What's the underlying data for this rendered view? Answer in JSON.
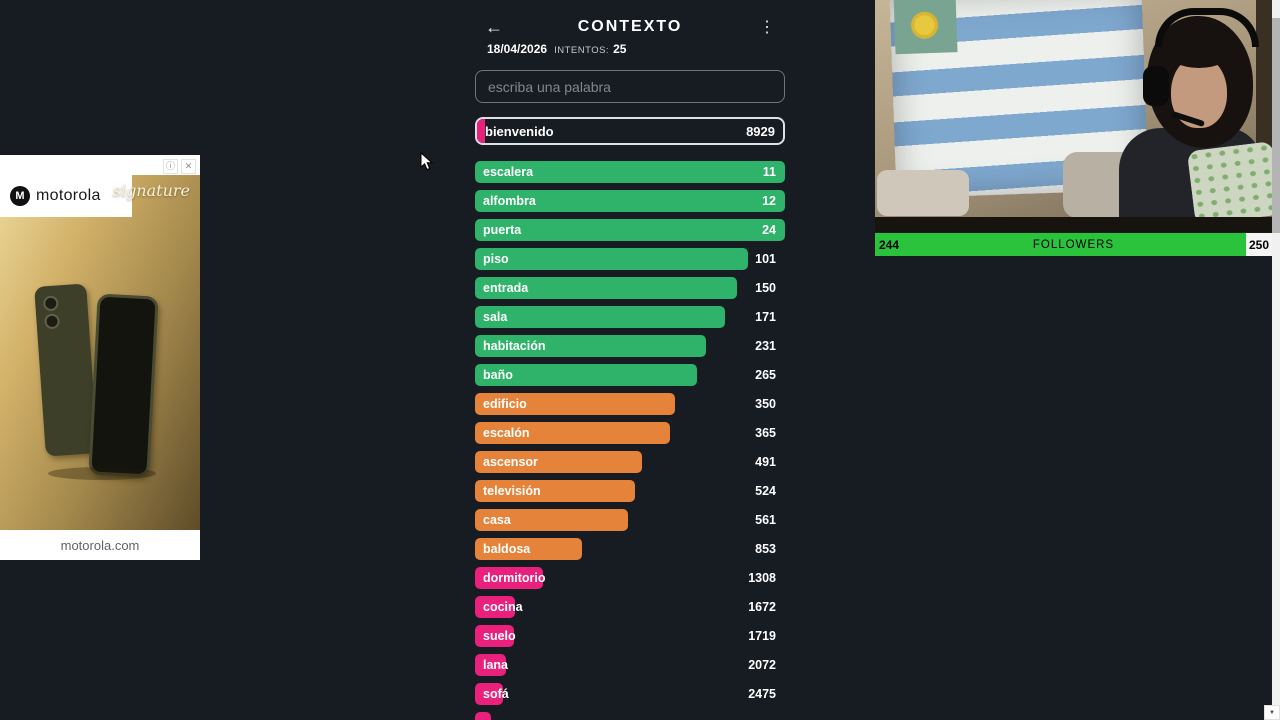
{
  "window": {
    "bg": "#171b22"
  },
  "game": {
    "back_icon": "←",
    "title": "CONTEXTO",
    "menu_icon": "⋮",
    "date": "18/04/2026",
    "attempts_label": "INTENTOS:",
    "attempts": "25",
    "input_placeholder": "escriba una palabra",
    "colors": {
      "green": "#2fb26a",
      "orange": "#e5833a",
      "pink": "#e9217c"
    },
    "current_guess": {
      "label": "bienvenido",
      "value": "8929",
      "pct": 2.5,
      "color": "pink"
    },
    "rows": [
      {
        "label": "escalera",
        "value": "11",
        "pct": 100,
        "color": "green"
      },
      {
        "label": "alfombra",
        "value": "12",
        "pct": 100,
        "color": "green"
      },
      {
        "label": "puerta",
        "value": "24",
        "pct": 100,
        "color": "green"
      },
      {
        "label": "piso",
        "value": "101",
        "pct": 88,
        "color": "green"
      },
      {
        "label": "entrada",
        "value": "150",
        "pct": 84.5,
        "color": "green"
      },
      {
        "label": "sala",
        "value": "171",
        "pct": 80.5,
        "color": "green"
      },
      {
        "label": "habitación",
        "value": "231",
        "pct": 74.5,
        "color": "green"
      },
      {
        "label": "baño",
        "value": "265",
        "pct": 71.5,
        "color": "green"
      },
      {
        "label": "edificio",
        "value": "350",
        "pct": 64.5,
        "color": "orange"
      },
      {
        "label": "escalón",
        "value": "365",
        "pct": 63,
        "color": "orange"
      },
      {
        "label": "ascensor",
        "value": "491",
        "pct": 54,
        "color": "orange"
      },
      {
        "label": "televisión",
        "value": "524",
        "pct": 51.5,
        "color": "orange"
      },
      {
        "label": "casa",
        "value": "561",
        "pct": 49.5,
        "color": "orange"
      },
      {
        "label": "baldosa",
        "value": "853",
        "pct": 34.5,
        "color": "orange"
      },
      {
        "label": "dormitorio",
        "value": "1308",
        "pct": 22,
        "color": "pink"
      },
      {
        "label": "cocina",
        "value": "1672",
        "pct": 13,
        "color": "pink"
      },
      {
        "label": "suelo",
        "value": "1719",
        "pct": 12.5,
        "color": "pink"
      },
      {
        "label": "lana",
        "value": "2072",
        "pct": 10,
        "color": "pink"
      },
      {
        "label": "sofá",
        "value": "2475",
        "pct": 9,
        "color": "pink"
      }
    ],
    "overflow_row": {
      "label": "",
      "value": "",
      "pct": 5,
      "color": "pink"
    }
  },
  "ad": {
    "brand": "motorola",
    "tagline": "signature",
    "domain": "motorola.com",
    "logo_letter": "M",
    "info_icon": "ⓘ",
    "close_icon": "✕"
  },
  "stream": {
    "followers": {
      "current": "244",
      "label": "FOLLOWERS",
      "goal": "250",
      "pct": 93.5,
      "fill_color": "#2cc33c"
    }
  },
  "scrollbar": {
    "down_icon": "▼"
  }
}
